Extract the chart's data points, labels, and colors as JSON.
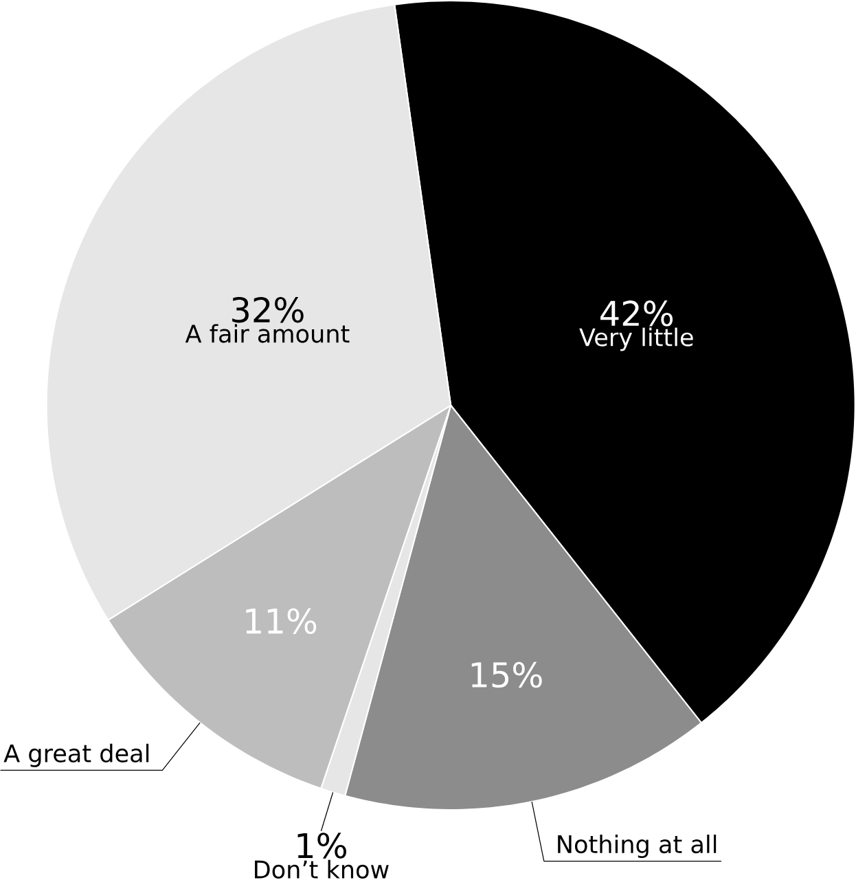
{
  "chart_data": {
    "type": "pie",
    "categories": [
      "Very little",
      "Nothing at all",
      "Don’t know",
      "A great deal",
      "A fair amount"
    ],
    "values": [
      42,
      15,
      1,
      11,
      32
    ],
    "colors": [
      "#000000",
      "#8c8c8c",
      "#e6e6e6",
      "#bdbdbd",
      "#e6e6e6"
    ],
    "value_labels": [
      "42%",
      "15%",
      "1%",
      "11%",
      "32%"
    ]
  }
}
